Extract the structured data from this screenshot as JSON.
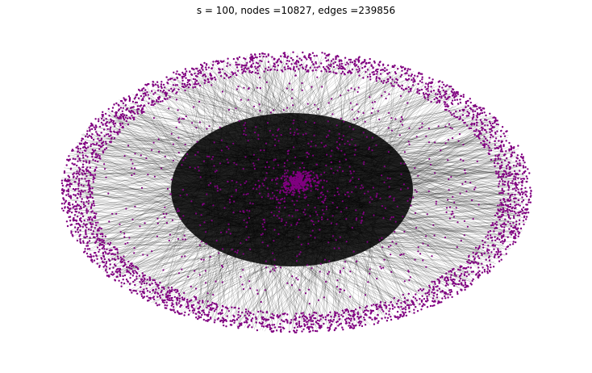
{
  "figure": {
    "title": "s = 100, nodes =10827, edges =239856"
  },
  "graph": {
    "s": 100,
    "nodes": 10827,
    "edges": 239856,
    "layout": "spring",
    "node_color": "#800080",
    "edge_color": "#000000",
    "background": "#ffffff"
  }
}
